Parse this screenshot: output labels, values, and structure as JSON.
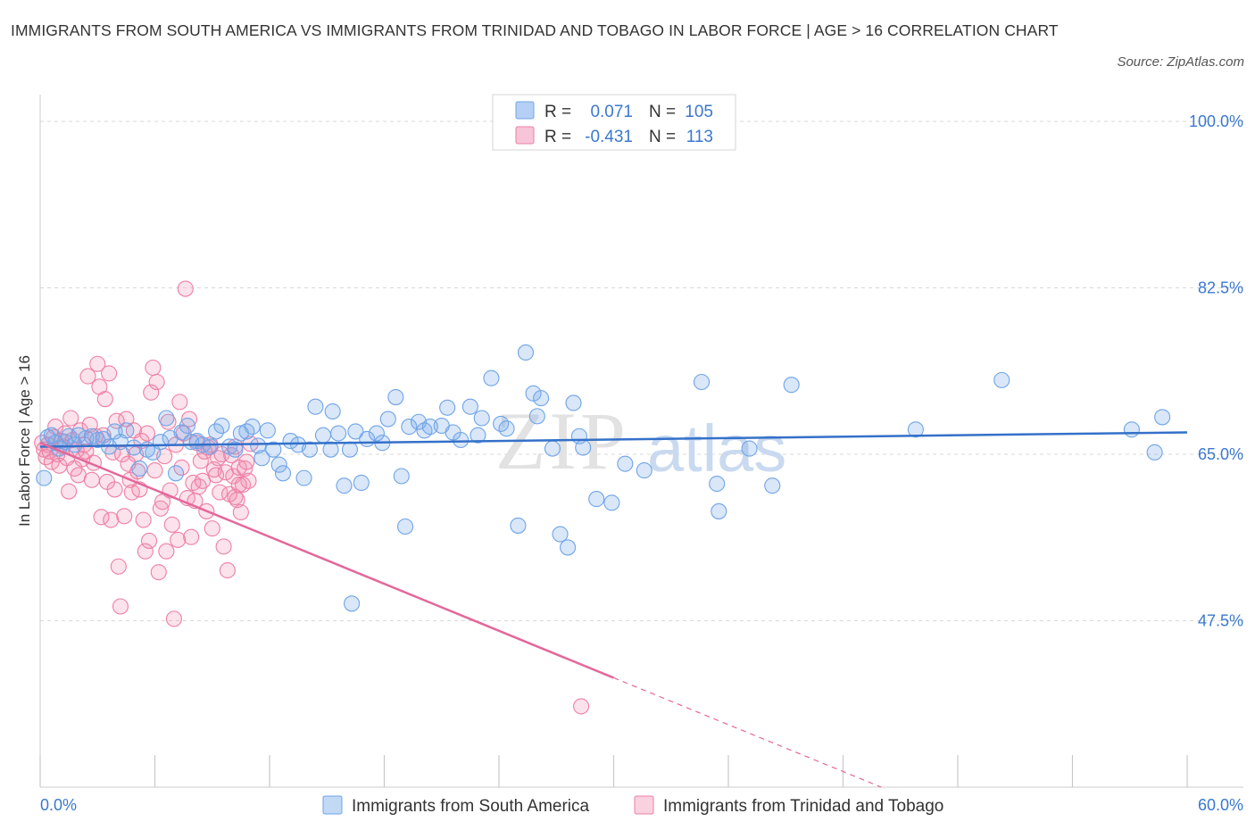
{
  "title": "IMMIGRANTS FROM SOUTH AMERICA VS IMMIGRANTS FROM TRINIDAD AND TOBAGO IN LABOR FORCE | AGE > 16 CORRELATION CHART",
  "source": "Source: ZipAtlas.com",
  "watermark": {
    "zip": "ZIP",
    "atlas": "atlas"
  },
  "colors": {
    "blue": "#6fa4e8",
    "blue_fill": "rgba(120,170,235,0.28)",
    "blue_line": "#3471c9",
    "pink": "#ee7fa3",
    "pink_fill": "rgba(240,140,175,0.25)",
    "pink_line": "#e4679a",
    "axis_label": "#3b78d0",
    "grid": "#d8d8d8"
  },
  "legend": {
    "rows": [
      {
        "r_label": "R =",
        "r_value": "0.071",
        "n_label": "N =",
        "n_value": "105"
      },
      {
        "r_label": "R =",
        "r_value": "-0.431",
        "n_label": "N =",
        "n_value": "113"
      }
    ]
  },
  "chart_data": {
    "type": "scatter",
    "title": "IMMIGRANTS FROM SOUTH AMERICA VS IMMIGRANTS FROM TRINIDAD AND TOBAGO IN LABOR FORCE | AGE > 16 CORRELATION CHART",
    "xlabel": "",
    "ylabel": "In Labor Force | Age > 16",
    "xlim": [
      0,
      60
    ],
    "ylim": [
      30,
      101.5
    ],
    "x_tick_labels": [
      "0.0%",
      "60.0%"
    ],
    "y_ticks": [
      100,
      82.5,
      65,
      47.5
    ],
    "y_tick_labels": [
      "100.0%",
      "82.5%",
      "65.0%",
      "47.5%"
    ],
    "grid": true,
    "legend_position": "top-center",
    "series": [
      {
        "name": "Immigrants from South America",
        "color": "#6fa4e8",
        "R": 0.071,
        "N": 105,
        "trend": {
          "x0": 0,
          "y0": 65.8,
          "x1": 60,
          "y1": 67.3,
          "dashed_from": null
        },
        "points": [
          [
            0.2,
            62.5
          ],
          [
            0.4,
            66.8
          ],
          [
            0.6,
            67.0
          ],
          [
            0.8,
            66.2
          ],
          [
            1.0,
            65.6
          ],
          [
            1.3,
            66.3
          ],
          [
            1.5,
            66.9
          ],
          [
            1.8,
            66.0
          ],
          [
            2.0,
            67.0
          ],
          [
            2.4,
            66.7
          ],
          [
            2.7,
            66.9
          ],
          [
            3.0,
            66.5
          ],
          [
            3.3,
            66.6
          ],
          [
            3.6,
            65.8
          ],
          [
            3.9,
            67.4
          ],
          [
            4.2,
            66.3
          ],
          [
            4.5,
            67.5
          ],
          [
            4.9,
            65.7
          ],
          [
            5.2,
            63.5
          ],
          [
            5.6,
            65.5
          ],
          [
            5.9,
            65.2
          ],
          [
            6.3,
            66.3
          ],
          [
            6.6,
            68.8
          ],
          [
            6.8,
            66.7
          ],
          [
            7.1,
            63.0
          ],
          [
            7.4,
            67.3
          ],
          [
            7.7,
            68.0
          ],
          [
            7.9,
            66.3
          ],
          [
            8.2,
            66.4
          ],
          [
            8.5,
            66.0
          ],
          [
            8.9,
            65.8
          ],
          [
            9.2,
            67.4
          ],
          [
            9.5,
            68.0
          ],
          [
            9.9,
            65.8
          ],
          [
            10.2,
            65.5
          ],
          [
            10.5,
            67.2
          ],
          [
            10.8,
            67.4
          ],
          [
            11.1,
            67.9
          ],
          [
            11.4,
            65.9
          ],
          [
            11.6,
            64.6
          ],
          [
            11.9,
            67.5
          ],
          [
            12.2,
            65.5
          ],
          [
            12.5,
            63.9
          ],
          [
            12.7,
            63.0
          ],
          [
            13.1,
            66.4
          ],
          [
            13.5,
            66.0
          ],
          [
            13.8,
            62.5
          ],
          [
            14.1,
            65.5
          ],
          [
            14.4,
            70.0
          ],
          [
            14.8,
            67.0
          ],
          [
            15.2,
            65.5
          ],
          [
            15.3,
            69.5
          ],
          [
            15.6,
            67.2
          ],
          [
            15.9,
            61.7
          ],
          [
            16.2,
            65.5
          ],
          [
            16.5,
            67.4
          ],
          [
            16.8,
            62.0
          ],
          [
            17.1,
            66.6
          ],
          [
            17.6,
            67.2
          ],
          [
            17.9,
            66.2
          ],
          [
            18.2,
            68.7
          ],
          [
            18.6,
            71.0
          ],
          [
            18.9,
            62.7
          ],
          [
            19.1,
            57.4
          ],
          [
            19.3,
            67.9
          ],
          [
            19.8,
            68.4
          ],
          [
            20.1,
            67.5
          ],
          [
            20.4,
            67.9
          ],
          [
            21.0,
            68.0
          ],
          [
            21.3,
            69.9
          ],
          [
            21.6,
            67.3
          ],
          [
            22.0,
            66.5
          ],
          [
            22.5,
            70.0
          ],
          [
            22.9,
            67.0
          ],
          [
            23.1,
            68.8
          ],
          [
            23.6,
            73.0
          ],
          [
            24.1,
            68.2
          ],
          [
            24.4,
            67.7
          ],
          [
            25.0,
            57.5
          ],
          [
            25.4,
            75.7
          ],
          [
            25.8,
            71.4
          ],
          [
            26.0,
            69.0
          ],
          [
            26.2,
            70.9
          ],
          [
            26.8,
            65.6
          ],
          [
            27.2,
            56.6
          ],
          [
            27.6,
            55.2
          ],
          [
            27.9,
            70.4
          ],
          [
            28.2,
            66.9
          ],
          [
            28.4,
            65.7
          ],
          [
            29.1,
            60.3
          ],
          [
            29.9,
            59.9
          ],
          [
            30.6,
            64.0
          ],
          [
            31.6,
            63.3
          ],
          [
            34.6,
            72.6
          ],
          [
            35.4,
            61.9
          ],
          [
            35.5,
            59.0
          ],
          [
            37.1,
            65.6
          ],
          [
            38.3,
            61.7
          ],
          [
            39.3,
            72.3
          ],
          [
            16.3,
            49.3
          ],
          [
            45.8,
            67.6
          ],
          [
            50.3,
            72.8
          ],
          [
            57.1,
            67.6
          ],
          [
            58.3,
            65.2
          ],
          [
            58.7,
            68.9
          ]
        ]
      },
      {
        "name": "Immigrants from Trinidad and Tobago",
        "color": "#ee7fa3",
        "R": -0.431,
        "N": 113,
        "trend": {
          "x0": 0,
          "y0": 66.2,
          "x1": 30.0,
          "y1": 41.5,
          "dashed_to_x": 44,
          "dashed_to_y": 30
        },
        "points": [
          [
            0.1,
            66.2
          ],
          [
            0.2,
            65.5
          ],
          [
            0.3,
            64.7
          ],
          [
            0.4,
            66.0
          ],
          [
            0.5,
            65.3
          ],
          [
            0.6,
            64.2
          ],
          [
            0.7,
            66.8
          ],
          [
            0.8,
            67.9
          ],
          [
            0.9,
            65.0
          ],
          [
            1.0,
            63.8
          ],
          [
            1.1,
            66.4
          ],
          [
            1.2,
            65.8
          ],
          [
            1.3,
            67.2
          ],
          [
            1.4,
            64.6
          ],
          [
            1.5,
            61.1
          ],
          [
            1.6,
            68.8
          ],
          [
            1.7,
            66.5
          ],
          [
            1.8,
            63.5
          ],
          [
            1.9,
            65.4
          ],
          [
            2.0,
            62.8
          ],
          [
            2.1,
            67.5
          ],
          [
            2.2,
            64.5
          ],
          [
            2.3,
            66.0
          ],
          [
            2.4,
            65.3
          ],
          [
            2.5,
            73.2
          ],
          [
            2.6,
            68.1
          ],
          [
            2.7,
            62.3
          ],
          [
            2.8,
            64.1
          ],
          [
            2.9,
            66.9
          ],
          [
            3.0,
            74.5
          ],
          [
            3.1,
            72.1
          ],
          [
            3.2,
            58.4
          ],
          [
            3.3,
            67.0
          ],
          [
            3.4,
            70.8
          ],
          [
            3.5,
            62.1
          ],
          [
            3.6,
            73.5
          ],
          [
            3.7,
            58.1
          ],
          [
            3.8,
            65.2
          ],
          [
            3.9,
            61.3
          ],
          [
            4.0,
            68.5
          ],
          [
            4.1,
            53.2
          ],
          [
            4.2,
            49.0
          ],
          [
            4.3,
            65.0
          ],
          [
            4.4,
            58.5
          ],
          [
            4.5,
            68.7
          ],
          [
            4.6,
            64.0
          ],
          [
            4.7,
            62.3
          ],
          [
            4.8,
            61.0
          ],
          [
            4.9,
            67.5
          ],
          [
            5.0,
            65.0
          ],
          [
            5.1,
            63.2
          ],
          [
            5.2,
            61.3
          ],
          [
            5.3,
            66.4
          ],
          [
            5.4,
            58.1
          ],
          [
            5.5,
            54.8
          ],
          [
            5.6,
            67.2
          ],
          [
            5.7,
            55.9
          ],
          [
            5.8,
            71.5
          ],
          [
            5.9,
            74.1
          ],
          [
            6.0,
            63.3
          ],
          [
            6.1,
            72.6
          ],
          [
            6.2,
            52.6
          ],
          [
            6.3,
            59.3
          ],
          [
            6.4,
            60.0
          ],
          [
            6.5,
            64.8
          ],
          [
            6.6,
            54.8
          ],
          [
            6.7,
            68.4
          ],
          [
            6.8,
            61.2
          ],
          [
            6.9,
            57.6
          ],
          [
            7.0,
            47.7
          ],
          [
            7.1,
            66.0
          ],
          [
            7.2,
            56.0
          ],
          [
            7.3,
            70.5
          ],
          [
            7.4,
            63.6
          ],
          [
            7.5,
            67.2
          ],
          [
            7.6,
            82.4
          ],
          [
            7.7,
            60.4
          ],
          [
            7.8,
            68.7
          ],
          [
            7.9,
            56.3
          ],
          [
            8.0,
            62.0
          ],
          [
            8.1,
            60.1
          ],
          [
            8.2,
            66.2
          ],
          [
            8.3,
            61.6
          ],
          [
            8.4,
            64.3
          ],
          [
            8.5,
            62.2
          ],
          [
            8.6,
            65.3
          ],
          [
            8.7,
            59.0
          ],
          [
            8.8,
            65.7
          ],
          [
            8.9,
            66.0
          ],
          [
            9.0,
            57.2
          ],
          [
            9.1,
            63.4
          ],
          [
            9.2,
            62.8
          ],
          [
            9.3,
            64.6
          ],
          [
            9.4,
            61.0
          ],
          [
            9.5,
            65.0
          ],
          [
            9.6,
            55.3
          ],
          [
            9.7,
            63.1
          ],
          [
            9.8,
            52.8
          ],
          [
            9.9,
            60.8
          ],
          [
            10.0,
            64.9
          ],
          [
            10.1,
            62.7
          ],
          [
            10.2,
            65.8
          ],
          [
            10.3,
            60.2
          ],
          [
            10.4,
            63.6
          ],
          [
            10.5,
            58.9
          ],
          [
            10.6,
            61.8
          ],
          [
            10.7,
            63.5
          ],
          [
            10.8,
            64.2
          ],
          [
            10.9,
            62.2
          ],
          [
            11.0,
            66.1
          ],
          [
            28.3,
            38.5
          ],
          [
            10.2,
            60.5
          ],
          [
            10.4,
            61.8
          ]
        ]
      }
    ],
    "bottom_legend": [
      "Immigrants from South America",
      "Immigrants from Trinidad and Tobago"
    ]
  }
}
